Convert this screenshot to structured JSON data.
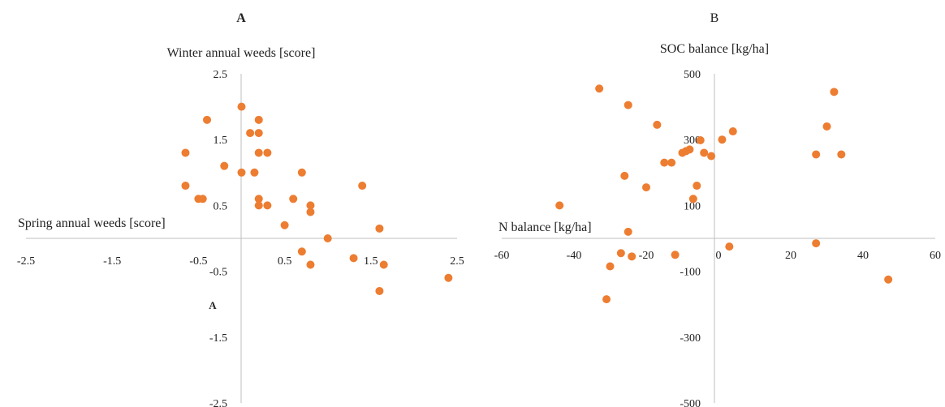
{
  "chart_data": [
    {
      "type": "scatter",
      "panel_label": "A",
      "stray_label": "A",
      "ylabel": "Winter annual weeds [score]",
      "xlabel": "Spring annual weeds [score]",
      "xlim": [
        -2.5,
        2.5
      ],
      "ylim": [
        -2.5,
        2.5
      ],
      "x_ticks": [
        -2.5,
        -1.5,
        -0.5,
        0.5,
        1.5,
        2.5
      ],
      "x_tick_labels": [
        "-2.5",
        "-1.5",
        "-0.5",
        "0.5",
        "1.5",
        "2.5"
      ],
      "y_ticks": [
        2.5,
        1.5,
        0.5,
        -0.5,
        -1.5,
        -2.5
      ],
      "y_tick_labels": [
        "2.5",
        "1.5",
        "0.5",
        "-0.5",
        "-1.5",
        "-2.5"
      ],
      "marker_color": "#ED7D31",
      "grid": false,
      "legend": "none",
      "points": [
        {
          "x": 0.0,
          "y": 2.0
        },
        {
          "x": -0.4,
          "y": 1.8
        },
        {
          "x": 0.2,
          "y": 1.8
        },
        {
          "x": 0.1,
          "y": 1.6
        },
        {
          "x": 0.2,
          "y": 1.6
        },
        {
          "x": -0.65,
          "y": 1.3
        },
        {
          "x": 0.2,
          "y": 1.3
        },
        {
          "x": 0.3,
          "y": 1.3
        },
        {
          "x": -0.2,
          "y": 1.1
        },
        {
          "x": 0.0,
          "y": 1.0
        },
        {
          "x": 0.15,
          "y": 1.0
        },
        {
          "x": 0.7,
          "y": 1.0
        },
        {
          "x": -0.65,
          "y": 0.8
        },
        {
          "x": 1.4,
          "y": 0.8
        },
        {
          "x": -0.5,
          "y": 0.6
        },
        {
          "x": -0.45,
          "y": 0.6
        },
        {
          "x": 0.2,
          "y": 0.6
        },
        {
          "x": 0.6,
          "y": 0.6
        },
        {
          "x": 0.2,
          "y": 0.5
        },
        {
          "x": 0.3,
          "y": 0.5
        },
        {
          "x": 0.8,
          "y": 0.5
        },
        {
          "x": 0.8,
          "y": 0.4
        },
        {
          "x": 0.5,
          "y": 0.2
        },
        {
          "x": 1.6,
          "y": 0.15
        },
        {
          "x": 1.0,
          "y": 0.0
        },
        {
          "x": 0.7,
          "y": -0.2
        },
        {
          "x": 1.3,
          "y": -0.3
        },
        {
          "x": 0.8,
          "y": -0.4
        },
        {
          "x": 1.65,
          "y": -0.4
        },
        {
          "x": 2.4,
          "y": -0.6
        },
        {
          "x": 1.6,
          "y": -0.8
        }
      ]
    },
    {
      "type": "scatter",
      "panel_label": "B",
      "ylabel": "SOC balance [kg/ha]",
      "xlabel": "N balance [kg/ha]",
      "xlim": [
        -60,
        60
      ],
      "ylim": [
        -500,
        500
      ],
      "x_ticks": [
        -60,
        -40,
        -20,
        0,
        20,
        40,
        60
      ],
      "x_tick_labels": [
        "-60",
        "-40",
        "-20",
        "0",
        "20",
        "40",
        "60"
      ],
      "y_ticks": [
        500,
        300,
        100,
        -100,
        -300,
        -500
      ],
      "y_tick_labels": [
        "500",
        "300",
        "100",
        "-100",
        "-300",
        "-500"
      ],
      "marker_color": "#ED7D31",
      "grid": false,
      "legend": "none",
      "points": [
        {
          "x": -33,
          "y": 455
        },
        {
          "x": 32,
          "y": 445
        },
        {
          "x": -25,
          "y": 405
        },
        {
          "x": -17,
          "y": 345
        },
        {
          "x": 30,
          "y": 340
        },
        {
          "x": 4,
          "y": 325
        },
        {
          "x": 1,
          "y": 300
        },
        {
          "x": -5,
          "y": 298
        },
        {
          "x": -9,
          "y": 265
        },
        {
          "x": -10,
          "y": 260
        },
        {
          "x": -8,
          "y": 270
        },
        {
          "x": -4,
          "y": 260
        },
        {
          "x": -2,
          "y": 250
        },
        {
          "x": 27,
          "y": 255
        },
        {
          "x": 34,
          "y": 255
        },
        {
          "x": -15,
          "y": 230
        },
        {
          "x": -13,
          "y": 230
        },
        {
          "x": -26,
          "y": 190
        },
        {
          "x": -20,
          "y": 155
        },
        {
          "x": -6,
          "y": 160
        },
        {
          "x": -7,
          "y": 120
        },
        {
          "x": -44,
          "y": 100
        },
        {
          "x": -25,
          "y": 20
        },
        {
          "x": 27,
          "y": -15
        },
        {
          "x": 3,
          "y": -25
        },
        {
          "x": -27,
          "y": -45
        },
        {
          "x": -24,
          "y": -55
        },
        {
          "x": -12,
          "y": -50
        },
        {
          "x": -30,
          "y": -85
        },
        {
          "x": 47,
          "y": -125
        },
        {
          "x": -31,
          "y": -185
        }
      ]
    }
  ]
}
